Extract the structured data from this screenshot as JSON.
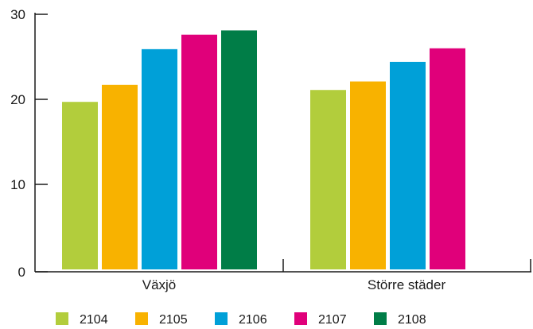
{
  "chart_data": {
    "type": "bar",
    "title": "",
    "xlabel": "",
    "ylabel": "",
    "categories": [
      "Växjö",
      "Större städer"
    ],
    "series": [
      {
        "name": "2104",
        "color": "#b2cd3c",
        "values": [
          19.7,
          21.1
        ]
      },
      {
        "name": "2105",
        "color": "#f8b200",
        "values": [
          21.7,
          22.1
        ]
      },
      {
        "name": "2106",
        "color": "#00a0d8",
        "values": [
          25.9,
          24.4
        ]
      },
      {
        "name": "2107",
        "color": "#e0007a",
        "values": [
          27.6,
          26.0
        ]
      },
      {
        "name": "2108",
        "color": "#007d47",
        "values": [
          28.1,
          null
        ]
      }
    ],
    "ylim": [
      0,
      30
    ],
    "yticks": [
      "0",
      "10",
      "20",
      "30"
    ],
    "grid": false,
    "legend": "bottom"
  }
}
